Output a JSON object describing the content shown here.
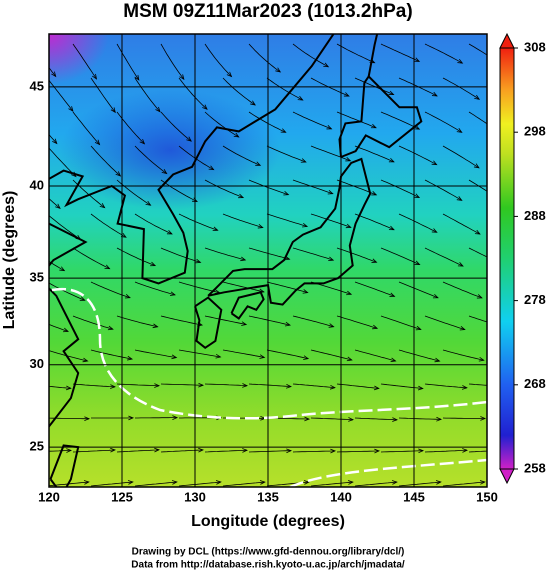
{
  "title": "MSM 09Z11Mar2023 (1013.2hPa)",
  "map": {
    "xlabel": "Longitude (degrees)",
    "ylabel": "Latitude  (degrees)",
    "xlim": [
      120,
      150
    ],
    "ylim": [
      22.5,
      47.5
    ],
    "xticks": [
      120,
      125,
      130,
      135,
      140,
      145,
      150
    ],
    "yticks": [
      25,
      30,
      35,
      40,
      45
    ]
  },
  "colorbar": {
    "lim": [
      258,
      308
    ],
    "ticks": [
      258,
      268,
      278,
      288,
      298,
      308
    ]
  },
  "credits": [
    "Drawing by DCL (https://www.gfd-dennou.org/library/dcl/)",
    "Data from http://database.rish.kyoto-u.ac.jp/arch/jmadata/"
  ]
}
